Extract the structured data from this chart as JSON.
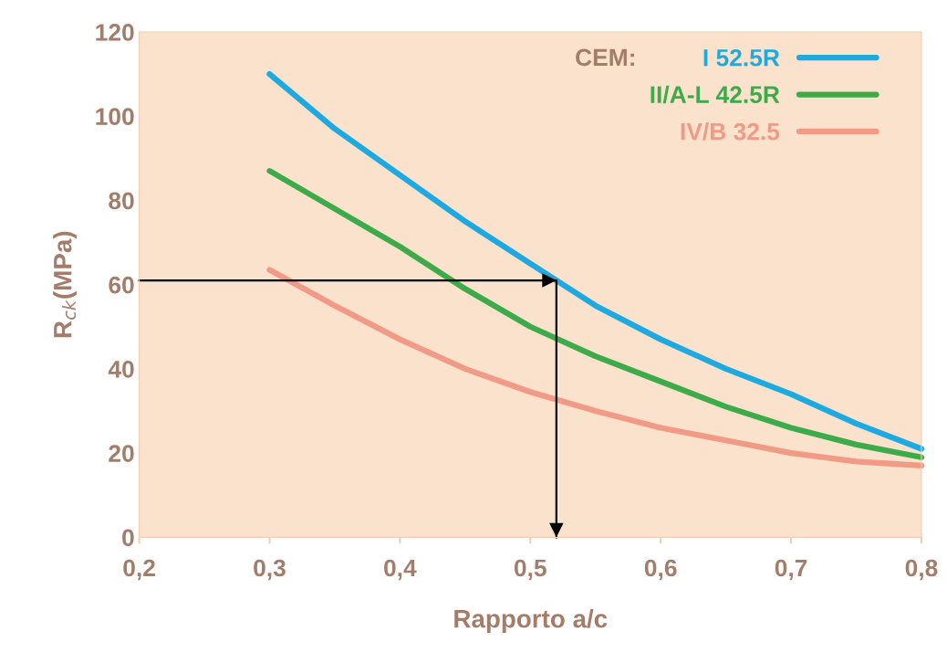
{
  "chart_data": {
    "type": "line",
    "xlabel": "Rapporto a/c",
    "ylabel": "R$_{ck}$(MPa)",
    "legend_title": "CEM:",
    "x": [
      0.3,
      0.35,
      0.4,
      0.45,
      0.5,
      0.55,
      0.6,
      0.65,
      0.7,
      0.75,
      0.8
    ],
    "series": [
      {
        "name": "I 52.5R",
        "color": "#1fa9e1",
        "values": [
          110,
          97,
          86,
          75,
          65,
          55,
          47,
          40,
          34,
          27,
          21
        ]
      },
      {
        "name": "II/A-L 42.5R",
        "color": "#3eab4a",
        "values": [
          87,
          78,
          69,
          59,
          50,
          43,
          37,
          31,
          26,
          22,
          19
        ]
      },
      {
        "name": "IV/B 32.5",
        "color": "#f19a85",
        "values": [
          63.5,
          55,
          47,
          40,
          34.5,
          30,
          26,
          23,
          20,
          18,
          17
        ]
      }
    ],
    "ref_lines": [
      {
        "axis": "y",
        "value": 61,
        "color": "#000000"
      },
      {
        "axis": "x",
        "value": 0.52,
        "color": "#000000"
      }
    ],
    "xlim": [
      0.2,
      0.8
    ],
    "ylim": [
      0,
      120
    ],
    "xticks": [
      {
        "value": 0.2,
        "label": "0,2"
      },
      {
        "value": 0.3,
        "label": "0,3"
      },
      {
        "value": 0.4,
        "label": "0,4"
      },
      {
        "value": 0.5,
        "label": "0,5"
      },
      {
        "value": 0.6,
        "label": "0,6"
      },
      {
        "value": 0.7,
        "label": "0,7"
      },
      {
        "value": 0.8,
        "label": "0,8"
      }
    ],
    "yticks": [
      0,
      20,
      40,
      60,
      80,
      100,
      120
    ],
    "grid": false,
    "legend": "top right"
  }
}
